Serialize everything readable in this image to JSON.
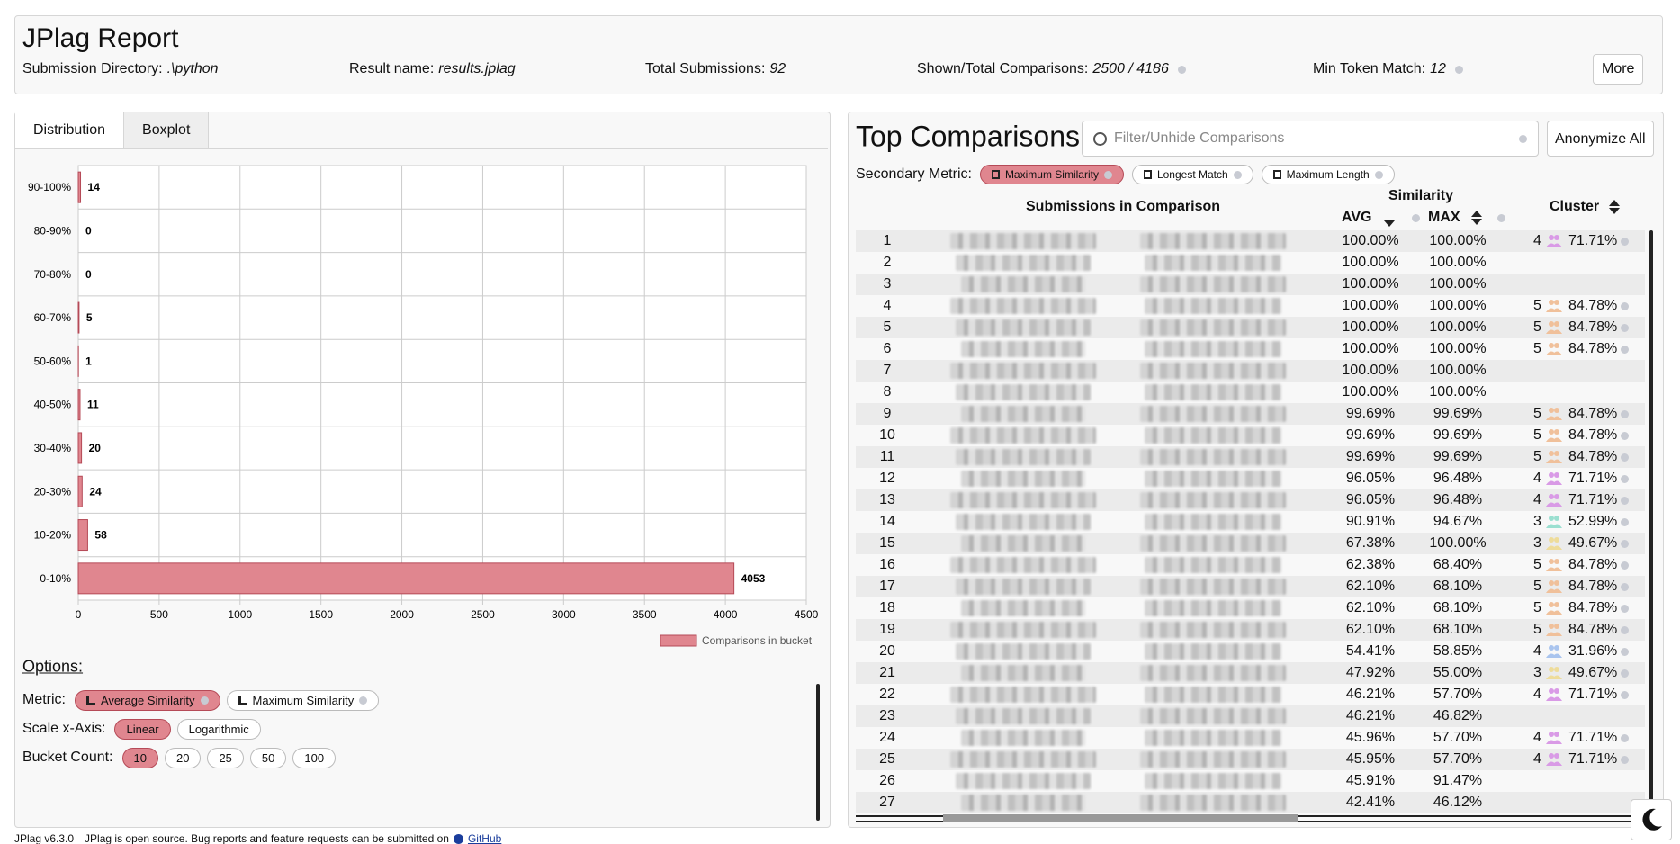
{
  "header": {
    "title": "JPlag Report",
    "items": [
      {
        "label": "Submission Directory:",
        "value": ".\\python"
      },
      {
        "label": "Result name:",
        "value": "results.jplag"
      },
      {
        "label": "Total Submissions:",
        "value": "92"
      },
      {
        "label": "Shown/Total Comparisons:",
        "value": "2500 / 4186"
      },
      {
        "label": "Min Token Match:",
        "value": "12"
      }
    ],
    "more_button": "More"
  },
  "tabs": [
    "Distribution",
    "Boxplot"
  ],
  "distribution": {
    "type": "bar",
    "categories": [
      "90-100%",
      "80-90%",
      "70-80%",
      "60-70%",
      "50-60%",
      "40-50%",
      "30-40%",
      "20-30%",
      "10-20%",
      "0-10%"
    ],
    "values": [
      14,
      0,
      0,
      5,
      1,
      11,
      20,
      24,
      58,
      4053
    ],
    "xlim": [
      0,
      4500
    ],
    "xticks": [
      0,
      500,
      1000,
      1500,
      2000,
      2500,
      3000,
      3500,
      4000,
      4500
    ],
    "grid": true,
    "color": "#e0868f",
    "legend": "Comparisons in bucket"
  },
  "options": {
    "title": "Options:",
    "metric": {
      "label": "Metric:",
      "choices": [
        "Average Similarity",
        "Maximum Similarity"
      ],
      "selected": 0
    },
    "scale": {
      "label": "Scale x-Axis:",
      "choices": [
        "Linear",
        "Logarithmic"
      ],
      "selected": 0
    },
    "buckets": {
      "label": "Bucket Count:",
      "choices": [
        "10",
        "20",
        "25",
        "50",
        "100"
      ],
      "selected": 0
    }
  },
  "comparisons": {
    "title": "Top Comparisons:",
    "filter_placeholder": "Filter/Unhide Comparisons",
    "anonymize_button": "Anonymize All",
    "secondary_label": "Secondary Metric:",
    "secondary_metrics": [
      "Maximum Similarity",
      "Longest Match",
      "Maximum Length"
    ],
    "secondary_selected": 0,
    "columns": {
      "submissions": "Submissions in Comparison",
      "similarity": "Similarity",
      "avg": "AVG",
      "max": "MAX",
      "cluster": "Cluster"
    },
    "rows": [
      {
        "index": "1",
        "avg": "100.00%",
        "max": "100.00%",
        "cluster": {
          "size": "4",
          "pct": "71.71%",
          "color": "#d99ae6"
        }
      },
      {
        "index": "2",
        "avg": "100.00%",
        "max": "100.00%",
        "cluster": null
      },
      {
        "index": "3",
        "avg": "100.00%",
        "max": "100.00%",
        "cluster": null
      },
      {
        "index": "4",
        "avg": "100.00%",
        "max": "100.00%",
        "cluster": {
          "size": "5",
          "pct": "84.78%",
          "color": "#f0c09a"
        }
      },
      {
        "index": "5",
        "avg": "100.00%",
        "max": "100.00%",
        "cluster": {
          "size": "5",
          "pct": "84.78%",
          "color": "#f0c09a"
        }
      },
      {
        "index": "6",
        "avg": "100.00%",
        "max": "100.00%",
        "cluster": {
          "size": "5",
          "pct": "84.78%",
          "color": "#f0c09a"
        }
      },
      {
        "index": "7",
        "avg": "100.00%",
        "max": "100.00%",
        "cluster": null
      },
      {
        "index": "8",
        "avg": "100.00%",
        "max": "100.00%",
        "cluster": null
      },
      {
        "index": "9",
        "avg": "99.69%",
        "max": "99.69%",
        "cluster": {
          "size": "5",
          "pct": "84.78%",
          "color": "#f0c09a"
        }
      },
      {
        "index": "10",
        "avg": "99.69%",
        "max": "99.69%",
        "cluster": {
          "size": "5",
          "pct": "84.78%",
          "color": "#f0c09a"
        }
      },
      {
        "index": "11",
        "avg": "99.69%",
        "max": "99.69%",
        "cluster": {
          "size": "5",
          "pct": "84.78%",
          "color": "#f0c09a"
        }
      },
      {
        "index": "12",
        "avg": "96.05%",
        "max": "96.48%",
        "cluster": {
          "size": "4",
          "pct": "71.71%",
          "color": "#d99ae6"
        }
      },
      {
        "index": "13",
        "avg": "96.05%",
        "max": "96.48%",
        "cluster": {
          "size": "4",
          "pct": "71.71%",
          "color": "#d99ae6"
        }
      },
      {
        "index": "14",
        "avg": "90.91%",
        "max": "94.67%",
        "cluster": {
          "size": "3",
          "pct": "52.99%",
          "color": "#9adfd0"
        }
      },
      {
        "index": "15",
        "avg": "67.38%",
        "max": "100.00%",
        "cluster": {
          "size": "3",
          "pct": "49.67%",
          "color": "#eedc9a"
        }
      },
      {
        "index": "16",
        "avg": "62.38%",
        "max": "68.40%",
        "cluster": {
          "size": "5",
          "pct": "84.78%",
          "color": "#f0c09a"
        }
      },
      {
        "index": "17",
        "avg": "62.10%",
        "max": "68.10%",
        "cluster": {
          "size": "5",
          "pct": "84.78%",
          "color": "#f0c09a"
        }
      },
      {
        "index": "18",
        "avg": "62.10%",
        "max": "68.10%",
        "cluster": {
          "size": "5",
          "pct": "84.78%",
          "color": "#f0c09a"
        }
      },
      {
        "index": "19",
        "avg": "62.10%",
        "max": "68.10%",
        "cluster": {
          "size": "5",
          "pct": "84.78%",
          "color": "#f0c09a"
        }
      },
      {
        "index": "20",
        "avg": "54.41%",
        "max": "58.85%",
        "cluster": {
          "size": "4",
          "pct": "31.96%",
          "color": "#a9c4ee"
        }
      },
      {
        "index": "21",
        "avg": "47.92%",
        "max": "55.00%",
        "cluster": {
          "size": "3",
          "pct": "49.67%",
          "color": "#eedc9a"
        }
      },
      {
        "index": "22",
        "avg": "46.21%",
        "max": "57.70%",
        "cluster": {
          "size": "4",
          "pct": "71.71%",
          "color": "#d99ae6"
        }
      },
      {
        "index": "23",
        "avg": "46.21%",
        "max": "46.82%",
        "cluster": null
      },
      {
        "index": "24",
        "avg": "45.96%",
        "max": "57.70%",
        "cluster": {
          "size": "4",
          "pct": "71.71%",
          "color": "#d99ae6"
        }
      },
      {
        "index": "25",
        "avg": "45.95%",
        "max": "57.70%",
        "cluster": {
          "size": "4",
          "pct": "71.71%",
          "color": "#d99ae6"
        }
      },
      {
        "index": "26",
        "avg": "45.91%",
        "max": "91.47%",
        "cluster": null
      },
      {
        "index": "27",
        "avg": "42.41%",
        "max": "46.12%",
        "cluster": null
      }
    ]
  },
  "footer": {
    "version": "JPlag v6.3.0",
    "text": "JPlag is open source. Bug reports and feature requests can be submitted on",
    "link": "GitHub"
  }
}
